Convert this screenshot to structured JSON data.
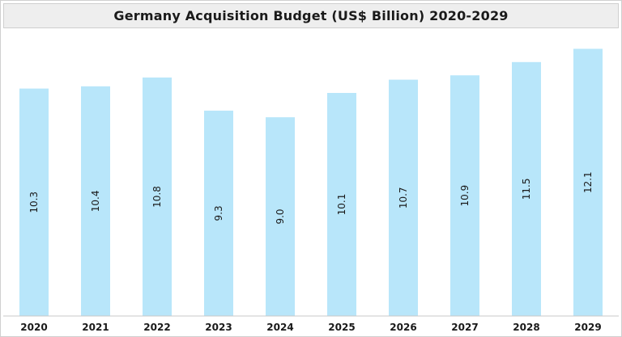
{
  "chart_data": {
    "type": "bar",
    "title": "Germany Acquisition Budget (US$ Billion) 2020-2029",
    "categories": [
      "2020",
      "2021",
      "2022",
      "2023",
      "2024",
      "2025",
      "2026",
      "2027",
      "2028",
      "2029"
    ],
    "values": [
      10.3,
      10.4,
      10.8,
      9.3,
      9.0,
      10.1,
      10.7,
      10.9,
      11.5,
      12.1
    ],
    "value_labels": [
      "10.3",
      "10.4",
      "10.8",
      "9.3",
      "9.0",
      "10.1",
      "10.7",
      "10.9",
      "11.5",
      "12.1"
    ],
    "xlabel": "",
    "ylabel": "",
    "ylim": [
      0,
      12.7
    ],
    "grid": false,
    "legend": "none",
    "bar_color": "#b8e6fa",
    "label_orientation": "vertical"
  }
}
